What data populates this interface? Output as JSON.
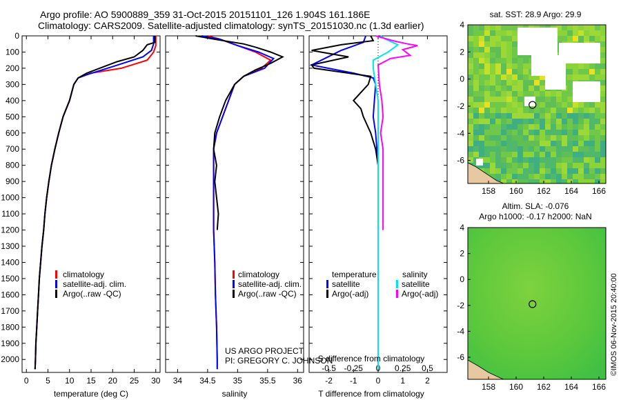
{
  "title_line1": "Argo profile: AO 5900889_359 31-Oct-2015 20151101_126 1.904S 161.186E",
  "title_line2": "Climatology: CARS2009. Satellite-adjusted climatology: synTS_20151030.nc (1.3d earlier)",
  "colors": {
    "clim": "#ff0000",
    "sat": "#0000ff",
    "argo": "#000000",
    "sal_sat": "#00e5ee",
    "sal_argo": "#ff00ff"
  },
  "chart_data": [
    {
      "id": "temperature",
      "type": "line",
      "xlabel": "temperature (deg C)",
      "ylabel": "",
      "xlim": [
        -1,
        31
      ],
      "ylim": [
        2080,
        0
      ],
      "xticks": [
        0,
        5,
        10,
        15,
        20,
        25,
        30
      ],
      "yticks": [
        0,
        100,
        200,
        300,
        400,
        500,
        600,
        700,
        800,
        900,
        1000,
        1100,
        1200,
        1300,
        1400,
        1500,
        1600,
        1700,
        1800,
        1900,
        2000
      ],
      "legend": [
        "climatology",
        "satellite-adj. clim.",
        "Argo(..raw -QC)"
      ],
      "series": [
        {
          "name": "climatology",
          "color": "clim",
          "points": [
            [
              30,
              0
            ],
            [
              30,
              60
            ],
            [
              29.5,
              100
            ],
            [
              28,
              150
            ],
            [
              22,
              200
            ],
            [
              15,
              230
            ],
            [
              12,
              260
            ],
            [
              11,
              300
            ],
            [
              10,
              400
            ],
            [
              8.5,
              500
            ],
            [
              7.5,
              600
            ],
            [
              6.6,
              700
            ],
            [
              5.8,
              800
            ],
            [
              5.2,
              900
            ],
            [
              4.7,
              1000
            ],
            [
              4.3,
              1100
            ],
            [
              4,
              1200
            ],
            [
              3.6,
              1300
            ],
            [
              3.3,
              1400
            ],
            [
              3,
              1500
            ],
            [
              2.8,
              1600
            ],
            [
              2.6,
              1700
            ],
            [
              2.4,
              1800
            ],
            [
              2.2,
              1900
            ],
            [
              2.1,
              2000
            ],
            [
              2,
              2060
            ]
          ]
        },
        {
          "name": "satellite",
          "color": "sat",
          "points": [
            [
              29.5,
              0
            ],
            [
              29.5,
              50
            ],
            [
              29,
              90
            ],
            [
              27,
              130
            ],
            [
              20,
              190
            ],
            [
              14,
              240
            ],
            [
              12,
              260
            ],
            [
              11,
              300
            ],
            [
              10,
              400
            ],
            [
              8.5,
              500
            ],
            [
              7.5,
              600
            ],
            [
              6.6,
              700
            ],
            [
              5.8,
              800
            ],
            [
              5.2,
              900
            ],
            [
              4.7,
              1000
            ],
            [
              4.3,
              1100
            ],
            [
              4,
              1200
            ],
            [
              3.6,
              1300
            ],
            [
              3.3,
              1400
            ],
            [
              3,
              1500
            ],
            [
              2.8,
              1600
            ],
            [
              2.6,
              1700
            ],
            [
              2.4,
              1800
            ],
            [
              2.2,
              1900
            ],
            [
              2.1,
              2000
            ],
            [
              2,
              2060
            ]
          ]
        },
        {
          "name": "argo",
          "color": "argo",
          "points": [
            [
              29.8,
              0
            ],
            [
              29.8,
              40
            ],
            [
              28,
              55
            ],
            [
              27,
              90
            ],
            [
              25,
              130
            ],
            [
              21,
              160
            ],
            [
              17,
              200
            ],
            [
              14,
              230
            ],
            [
              12,
              260
            ],
            [
              11,
              300
            ],
            [
              10,
              400
            ],
            [
              8.5,
              500
            ],
            [
              7.5,
              600
            ],
            [
              6.6,
              700
            ],
            [
              5.8,
              800
            ],
            [
              5.2,
              900
            ],
            [
              4.7,
              1000
            ],
            [
              4.3,
              1100
            ],
            [
              4,
              1200
            ],
            [
              3.6,
              1300
            ],
            [
              3.3,
              1400
            ],
            [
              3,
              1500
            ],
            [
              2.8,
              1600
            ],
            [
              2.6,
              1700
            ],
            [
              2.4,
              1800
            ],
            [
              2.2,
              1900
            ],
            [
              2.1,
              2000
            ],
            [
              2,
              2060
            ]
          ]
        }
      ]
    },
    {
      "id": "salinity",
      "type": "line",
      "xlabel": "salinity",
      "xlim": [
        33.8,
        36.1
      ],
      "ylim": [
        2080,
        0
      ],
      "xticks": [
        34,
        34.5,
        35,
        35.5,
        36
      ],
      "legend": [
        "climatology",
        "satellite-adj. clim.",
        "Argo(..raw -QC)"
      ],
      "annotation_line1": "US ARGO PROJECT",
      "annotation_line2": "PI: GREGORY C. JOHNSON",
      "series": [
        {
          "name": "climatology",
          "color": "clim",
          "points": [
            [
              34.5,
              0
            ],
            [
              34.7,
              20
            ],
            [
              35,
              60
            ],
            [
              35.3,
              100
            ],
            [
              35.55,
              150
            ],
            [
              35.4,
              200
            ],
            [
              35.1,
              250
            ],
            [
              34.95,
              300
            ],
            [
              34.85,
              400
            ],
            [
              34.75,
              500
            ],
            [
              34.65,
              600
            ],
            [
              34.6,
              700
            ],
            [
              34.6,
              800
            ],
            [
              34.6,
              1000
            ],
            [
              34.6,
              1200
            ],
            [
              34.62,
              1400
            ],
            [
              34.63,
              1600
            ],
            [
              34.65,
              1800
            ],
            [
              34.66,
              2000
            ],
            [
              34.66,
              2060
            ]
          ]
        },
        {
          "name": "satellite",
          "color": "sat",
          "points": [
            [
              34.4,
              0
            ],
            [
              34.7,
              20
            ],
            [
              35,
              60
            ],
            [
              35.35,
              100
            ],
            [
              35.6,
              140
            ],
            [
              35.45,
              200
            ],
            [
              35.1,
              250
            ],
            [
              34.95,
              300
            ],
            [
              34.85,
              400
            ],
            [
              34.75,
              500
            ],
            [
              34.65,
              600
            ],
            [
              34.6,
              700
            ],
            [
              34.6,
              800
            ],
            [
              34.6,
              1000
            ],
            [
              34.6,
              1200
            ],
            [
              34.62,
              1400
            ],
            [
              34.63,
              1600
            ],
            [
              34.65,
              1800
            ],
            [
              34.66,
              2000
            ],
            [
              34.66,
              2060
            ]
          ]
        },
        {
          "name": "argo",
          "color": "argo",
          "points": [
            [
              34.3,
              0
            ],
            [
              34.6,
              20
            ],
            [
              35.1,
              50
            ],
            [
              35.3,
              70
            ],
            [
              35.55,
              100
            ],
            [
              35.75,
              130
            ],
            [
              35.55,
              170
            ],
            [
              35.3,
              210
            ],
            [
              35.1,
              250
            ],
            [
              34.95,
              300
            ],
            [
              34.8,
              400
            ],
            [
              34.7,
              500
            ],
            [
              34.62,
              600
            ],
            [
              34.6,
              700
            ],
            [
              34.65,
              800
            ],
            [
              34.62,
              900
            ],
            [
              34.65,
              1000
            ],
            [
              34.68,
              1100
            ],
            [
              34.66,
              1200
            ]
          ]
        }
      ]
    },
    {
      "id": "difference",
      "type": "line",
      "xlabel": "T difference from climatology",
      "x2label": "S difference from climatology",
      "xlim": [
        -2.8,
        2.8
      ],
      "ylim": [
        2080,
        0
      ],
      "xticks": [
        -2,
        -1,
        0,
        1,
        2
      ],
      "s_ticks": [
        "-0.5",
        "-0.25",
        "0",
        "0.25",
        "0.5"
      ],
      "s_tick_values": [
        -0.5,
        -0.25,
        0,
        0.25,
        0.5
      ],
      "s_scale": 4,
      "legend_title_t": "temperature",
      "legend_title_s": "salinity",
      "legend": [
        "satellite",
        "Argo(-adj)",
        "satellite",
        "Argo(-adj)"
      ],
      "series": [
        {
          "name": "T satellite",
          "color": "sat",
          "points": [
            [
              -0.5,
              0
            ],
            [
              -0.6,
              40
            ],
            [
              -1.5,
              90
            ],
            [
              -2.7,
              180
            ],
            [
              -1,
              230
            ],
            [
              -0.2,
              260
            ],
            [
              -0.1,
              300
            ],
            [
              -0.15,
              400
            ],
            [
              -0.2,
              500
            ],
            [
              -0.1,
              600
            ],
            [
              -0.05,
              700
            ],
            [
              0,
              800
            ],
            [
              0,
              1000
            ],
            [
              0,
              1200
            ],
            [
              0,
              1600
            ],
            [
              0,
              2000
            ],
            [
              0,
              2060
            ]
          ]
        },
        {
          "name": "T argo",
          "color": "argo",
          "points": [
            [
              -0.3,
              0
            ],
            [
              -0.2,
              30
            ],
            [
              -1.5,
              55
            ],
            [
              -2.7,
              90
            ],
            [
              -1.2,
              130
            ],
            [
              -2.7,
              180
            ],
            [
              -2.6,
              200
            ],
            [
              -0.3,
              250
            ],
            [
              -0.4,
              300
            ],
            [
              -1,
              400
            ],
            [
              -0.7,
              450
            ],
            [
              -0.6,
              500
            ],
            [
              -0.3,
              600
            ],
            [
              -0.1,
              700
            ],
            [
              0,
              800
            ],
            [
              0,
              1000
            ],
            [
              0,
              1200
            ]
          ]
        },
        {
          "name": "S satellite",
          "color": "sal_sat",
          "points": [
            [
              0.1,
              0
            ],
            [
              0.3,
              20
            ],
            [
              0.8,
              55
            ],
            [
              0.4,
              100
            ],
            [
              -0.2,
              150
            ],
            [
              -0.2,
              200
            ],
            [
              -0.1,
              300
            ],
            [
              0,
              400
            ],
            [
              0,
              600
            ],
            [
              0,
              1000
            ],
            [
              0,
              1500
            ],
            [
              0,
              2060
            ]
          ]
        },
        {
          "name": "S argo",
          "color": "sal_argo",
          "points": [
            [
              -0.1,
              0
            ],
            [
              0.6,
              30
            ],
            [
              1.2,
              50
            ],
            [
              1.6,
              60
            ],
            [
              1.0,
              85
            ],
            [
              1.3,
              120
            ],
            [
              0.5,
              140
            ],
            [
              0,
              180
            ],
            [
              0.05,
              300
            ],
            [
              0.15,
              400
            ],
            [
              0.2,
              500
            ],
            [
              0.1,
              600
            ],
            [
              0.2,
              700
            ],
            [
              0.2,
              800
            ],
            [
              0.2,
              900
            ],
            [
              0.2,
              1000
            ],
            [
              0.2,
              1100
            ],
            [
              0.2,
              1200
            ]
          ]
        }
      ]
    },
    {
      "id": "sst_map",
      "type": "heatmap",
      "title": "sat. SST: 28.9 Argo: 29.9",
      "xlim": [
        156.5,
        166.5
      ],
      "ylim": [
        -7.7,
        4
      ],
      "xticks": [
        158,
        160,
        162,
        164,
        166
      ],
      "yticks": [
        4,
        2,
        0,
        -2,
        -4,
        -6
      ],
      "marker": [
        161.186,
        -1.904
      ]
    },
    {
      "id": "sla_map",
      "type": "heatmap",
      "title_line1": "Altim. SLA: -0.076",
      "title_line2": "Argo h1000: -0.17 h2000: NaN",
      "xlim": [
        156.5,
        166.5
      ],
      "ylim": [
        -7.7,
        4
      ],
      "xticks": [
        158,
        160,
        162,
        164,
        166
      ],
      "yticks": [
        4,
        2,
        0,
        -2,
        -4,
        -6
      ],
      "marker": [
        161.186,
        -1.904
      ]
    }
  ],
  "credit": "©IMOS 06-Nov-2015 20:40:00"
}
